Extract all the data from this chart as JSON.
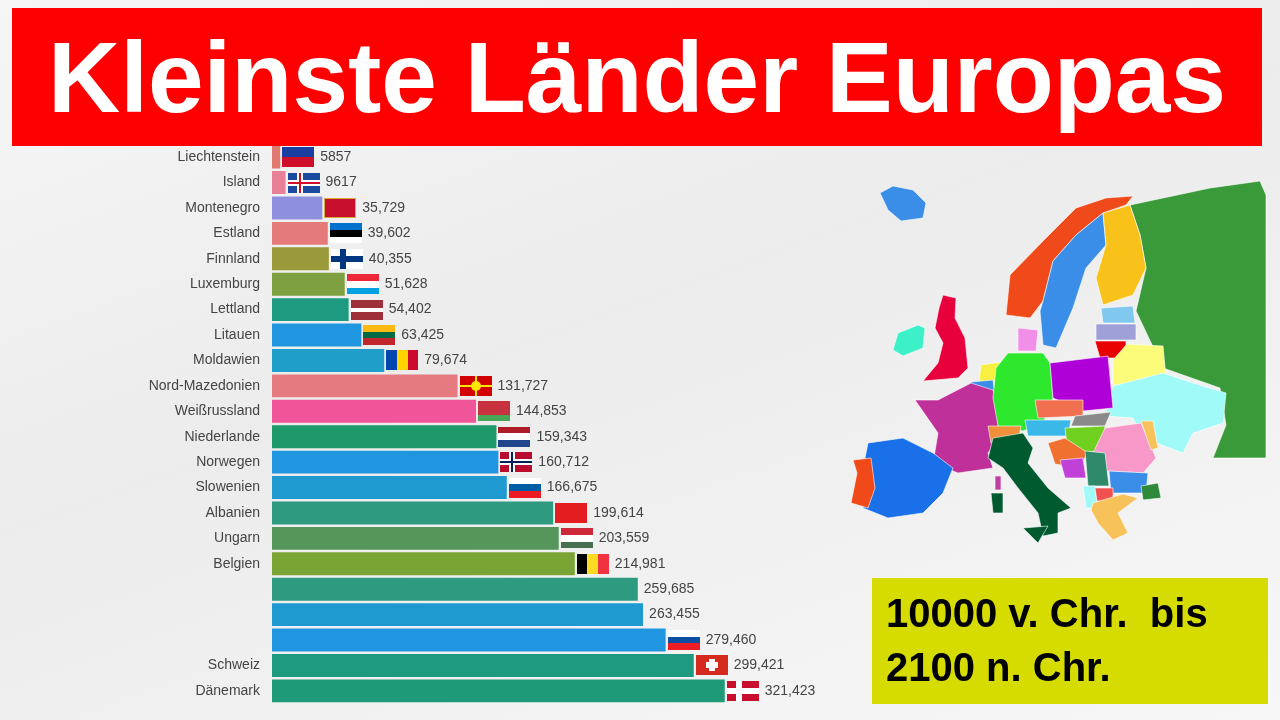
{
  "chart_data": {
    "type": "bar",
    "orientation": "horizontal",
    "title": "Kleinste Länder Europas",
    "subtitle": "10000 v. Chr.  bis 2100 n. Chr.",
    "categories": [
      "Liechtenstein",
      "Island",
      "Montenegro",
      "Estland",
      "Finnland",
      "Luxemburg",
      "Lettland",
      "Litauen",
      "Moldawien",
      "Nord-Mazedonien",
      "Weißrussland",
      "Niederlande",
      "Norwegen",
      "Slowenien",
      "Albanien",
      "Ungarn",
      "Belgien",
      null,
      null,
      null,
      "Schweiz",
      "Dänemark"
    ],
    "values": [
      5857,
      9617,
      35729,
      39602,
      40355,
      51628,
      54402,
      63425,
      79674,
      131727,
      144853,
      159343,
      160712,
      166675,
      199614,
      203559,
      214981,
      259685,
      263455,
      279460,
      299421,
      321423
    ],
    "value_labels": [
      "5857",
      "9617",
      "35,729",
      "39,602",
      "40,355",
      "51,628",
      "54,402",
      "63,425",
      "79,674",
      "131,727",
      "144,853",
      "159,343",
      "160,712",
      "166,675",
      "199,614",
      "203,559",
      "214,981",
      "259,685",
      "263,455",
      "279,460",
      "299,421",
      "321,423"
    ],
    "colors": [
      "#e07a70",
      "#e88098",
      "#8f8fe0",
      "#e57a7a",
      "#9a9a3a",
      "#7fa040",
      "#1e9a80",
      "#2196e0",
      "#1e9ec8",
      "#e57a80",
      "#f0559a",
      "#1e9a6a",
      "#2196e0",
      "#1e9ad0",
      "#2e9a80",
      "#55975a",
      "#7aa535",
      "#2e9a80",
      "#1e9ad0",
      "#2196e0",
      "#1e9a80",
      "#1e9a78"
    ],
    "tick_labels": "y"
  }
}
